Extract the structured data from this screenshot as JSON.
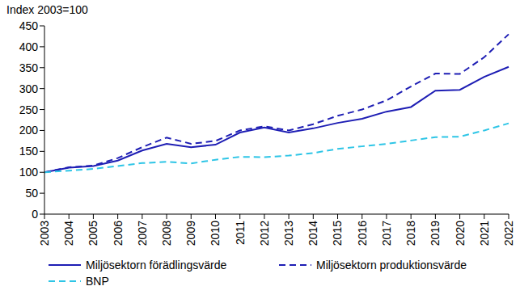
{
  "chart_data": {
    "type": "line",
    "ylabel": "Index 2003=100",
    "categories": [
      "2003",
      "2004",
      "2005",
      "2006",
      "2007",
      "2008",
      "2009",
      "2010",
      "2011",
      "2012",
      "2013",
      "2014",
      "2015",
      "2016",
      "2017",
      "2018",
      "2019",
      "2020",
      "2021",
      "2022"
    ],
    "series": [
      {
        "name": "Miljösektorn förädlingsvärde",
        "color": "#1e1eb4",
        "line_style": "solid",
        "values": [
          100,
          111,
          115,
          128,
          152,
          168,
          160,
          166,
          195,
          207,
          195,
          205,
          218,
          228,
          245,
          256,
          295,
          297,
          328,
          352
        ]
      },
      {
        "name": "Miljösektorn produktionsvärde",
        "color": "#1e1eb4",
        "line_style": "dashed",
        "values": [
          100,
          112,
          116,
          134,
          160,
          183,
          168,
          175,
          200,
          210,
          200,
          215,
          235,
          250,
          272,
          305,
          336,
          335,
          375,
          430
        ]
      },
      {
        "name": "BNP",
        "color": "#2ec5e6",
        "line_style": "dashed",
        "values": [
          100,
          104,
          108,
          115,
          122,
          125,
          121,
          130,
          137,
          136,
          140,
          146,
          156,
          162,
          168,
          176,
          184,
          185,
          200,
          217
        ]
      }
    ],
    "ylim": [
      0,
      450
    ],
    "yticks": [
      0,
      50,
      100,
      150,
      200,
      250,
      300,
      350,
      400,
      450
    ],
    "grid": false
  }
}
